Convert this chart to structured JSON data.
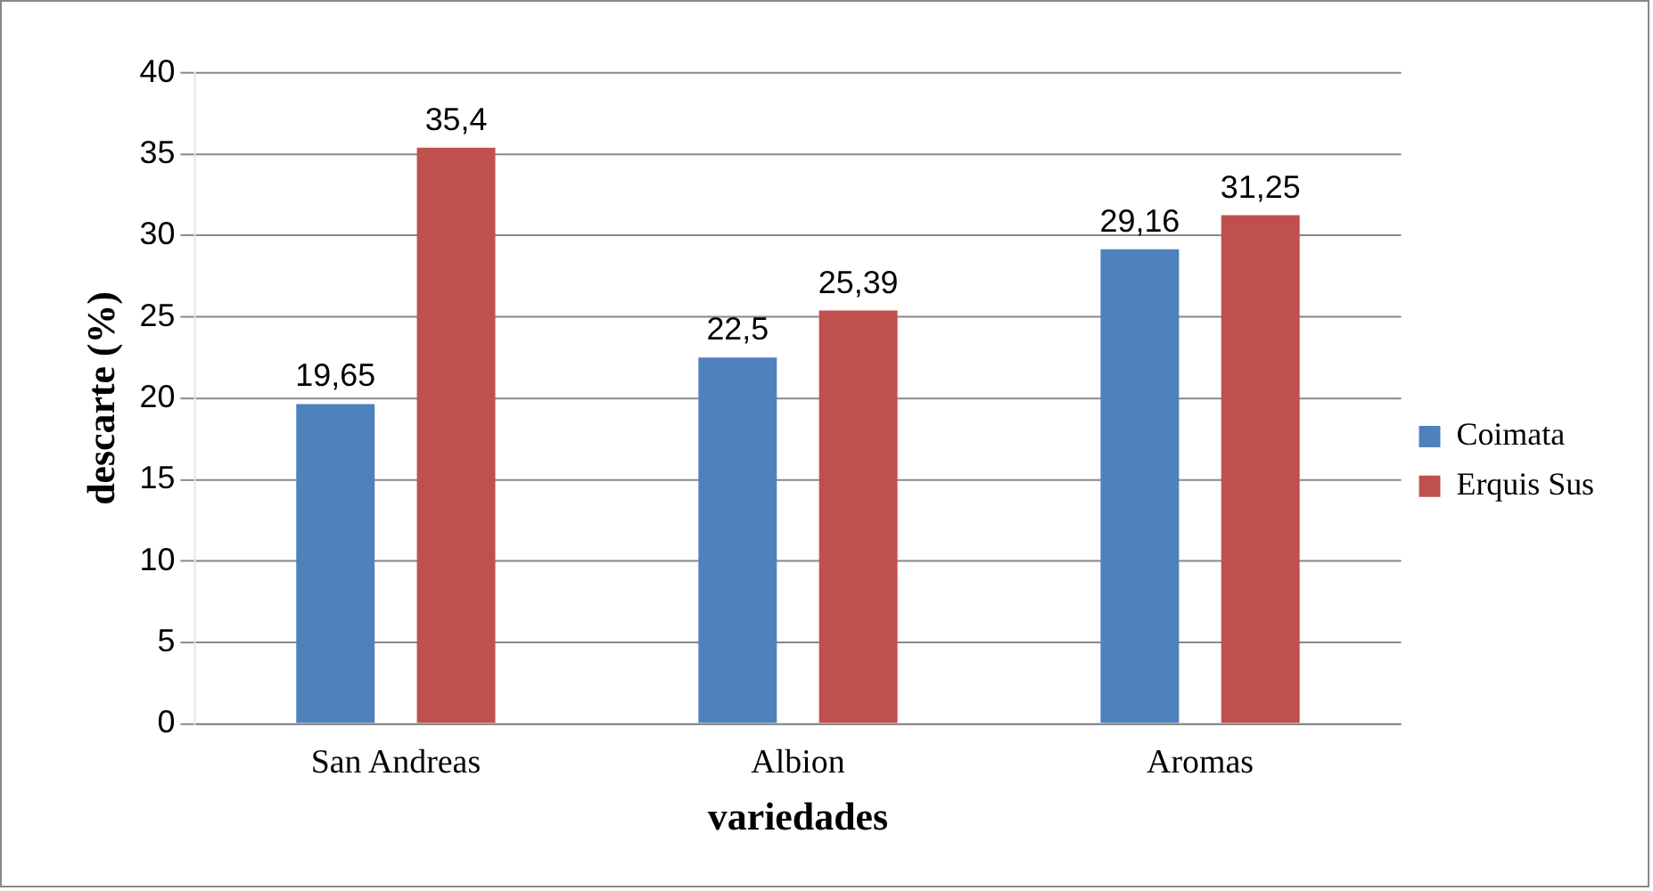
{
  "chart_data": {
    "type": "bar",
    "xlabel": "variedades",
    "ylabel": "descarte (%)",
    "categories": [
      "San Andreas",
      "Albion",
      "Aromas"
    ],
    "series": [
      {
        "name": "Coimata",
        "color": "#4f81bd",
        "values": [
          19.65,
          22.5,
          29.16
        ],
        "value_labels": [
          "19,65",
          "22,5",
          "29,16"
        ]
      },
      {
        "name": "Erquis Sus",
        "color": "#c0504d",
        "values": [
          35.4,
          25.39,
          31.25
        ],
        "value_labels": [
          "35,4",
          "25,39",
          "31,25"
        ]
      }
    ],
    "ylim": [
      0,
      40
    ],
    "yticks": [
      0,
      5,
      10,
      15,
      20,
      25,
      30,
      35,
      40
    ],
    "grid": "y",
    "legend": "right"
  }
}
